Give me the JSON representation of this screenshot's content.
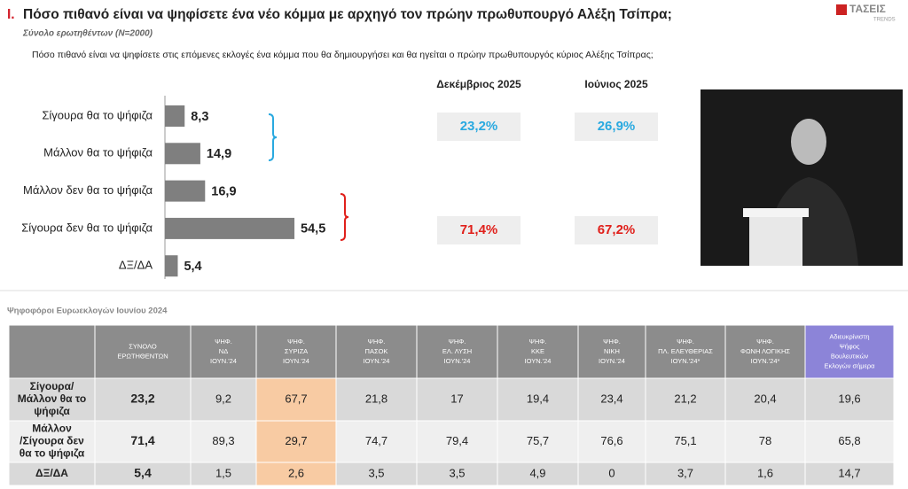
{
  "header": {
    "number": "Ι.",
    "title": "Πόσο πιθανό είναι να ψηφίσετε ένα νέο κόμμα με αρχηγό τον πρώην πρωθυπουργό Αλέξη Τσίπρα;",
    "subtitle": "Σύνολο ερωτηθέντων (N=2000)",
    "logo": "ΤΑΣΕΙΣ",
    "logo_sub": "TRENDS",
    "question": "Πόσο πιθανό είναι να ψηφίσετε στις επόμενες εκλογές ένα κόμμα που θα δημιουργήσει και θα ηγείται ο πρώην πρωθυπουργός κύριος Αλέξης Τσίπρας;"
  },
  "chart_data": {
    "type": "bar",
    "orientation": "horizontal",
    "categories": [
      "Σίγουρα θα το ψήφιζα",
      "Μάλλον θα το ψήφιζα",
      "Μάλλον δεν θα το ψήφιζα",
      "Σίγουρα δεν θα το ψήφιζα",
      "ΔΞ/ΔΑ"
    ],
    "values": [
      8.3,
      14.9,
      16.9,
      54.5,
      5.4
    ],
    "value_labels": [
      "8,3",
      "14,9",
      "16,9",
      "54,5",
      "5,4"
    ],
    "color": "#7f7f7f",
    "xlim": [
      0,
      100
    ]
  },
  "summary": [
    {
      "title": "Δεκέμβριος 2025",
      "values": [
        "23,2%",
        "71,4%"
      ]
    },
    {
      "title": "Ιούνιος 2025",
      "values": [
        "26,9%",
        "67,2%"
      ]
    }
  ],
  "table": {
    "title": "Ψηφοφόροι Ευρωεκλογών Ιουνίου 2024",
    "columns": [
      [
        "ΣΥΝΟΛΟ",
        "ΕΡΩΤΗΘΕΝΤΩΝ"
      ],
      [
        "ΨΗΦ.",
        "ΝΔ",
        "ΙΟΥΝ.'24"
      ],
      [
        "ΨΗΦ.",
        "ΣΥΡΙΖΑ",
        "ΙΟΥΝ.'24"
      ],
      [
        "ΨΗΦ.",
        "ΠΑΣΟΚ",
        "ΙΟΥΝ.'24"
      ],
      [
        "ΨΗΦ.",
        "ΕΛ. ΛΥΣΗ",
        "ΙΟΥΝ.'24"
      ],
      [
        "ΨΗΦ.",
        "ΚΚΕ",
        "ΙΟΥΝ.'24"
      ],
      [
        "ΨΗΦ.",
        "ΝΙΚΗ",
        "ΙΟΥΝ.'24"
      ],
      [
        "ΨΗΦ.",
        "ΠΛ. ΕΛΕΥΘΕΡΙΑΣ",
        "ΙΟΥΝ.'24*"
      ],
      [
        "ΨΗΦ.",
        "ΦΩΝΗ ΛΟΓΙΚΗΣ",
        "ΙΟΥΝ.'24*"
      ],
      [
        "Αδιευκρίνιστη",
        "Ψήφος",
        "Βουλευτικών",
        "Εκλογών σήμερα"
      ]
    ],
    "rows": [
      {
        "label": [
          "Σίγουρα/",
          "Μάλλον θα το",
          "ψήφιζα"
        ],
        "cells": [
          "23,2",
          "9,2",
          "67,7",
          "21,8",
          "17",
          "19,4",
          "23,4",
          "21,2",
          "20,4",
          "19,6"
        ]
      },
      {
        "label": [
          "Μάλλον",
          "/Σίγουρα δεν",
          "θα το ψήφιζα"
        ],
        "cells": [
          "71,4",
          "89,3",
          "29,7",
          "74,7",
          "79,4",
          "75,7",
          "76,6",
          "75,1",
          "78",
          "65,8"
        ]
      },
      {
        "label": [
          "ΔΞ/ΔΑ"
        ],
        "cells": [
          "5,4",
          "1,5",
          "2,6",
          "3,5",
          "3,5",
          "4,9",
          "0",
          "3,7",
          "1,6",
          "14,7"
        ]
      }
    ]
  }
}
